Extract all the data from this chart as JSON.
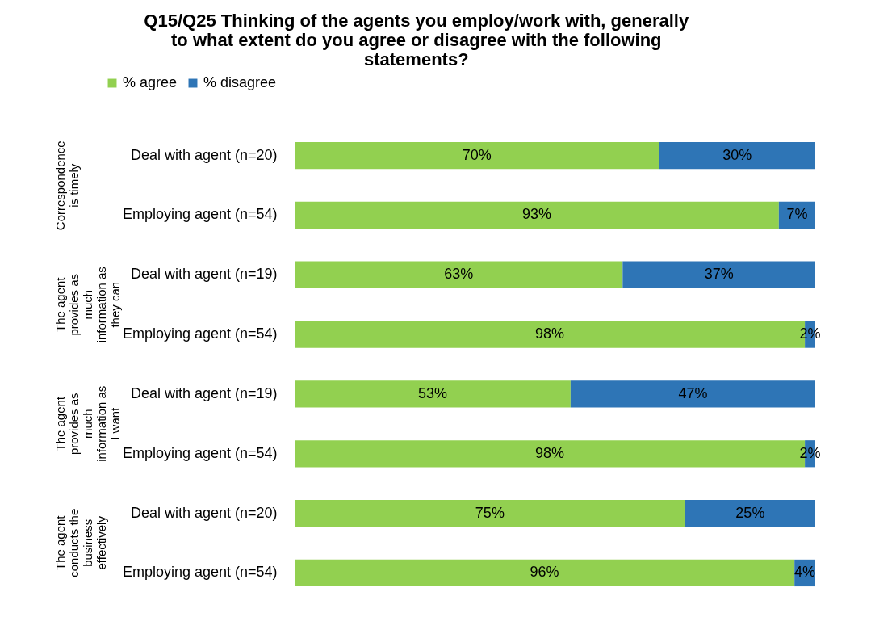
{
  "chart_data": {
    "type": "bar",
    "orientation": "horizontal",
    "stacked": true,
    "title": "Q15/Q25 Thinking of the agents you employ/work with, generally to what extent do you agree or disagree with the following statements?",
    "categories": [
      "Deal with agent (n=20)",
      "Employing agent (n=54)",
      "Deal with agent (n=19)",
      "Employing agent (n=54)",
      "Deal with agent (n=19)",
      "Employing agent (n=54)",
      "Deal with agent (n=20)",
      "Employing agent (n=54)"
    ],
    "series": [
      {
        "name": "% agree",
        "color": "#92d050",
        "values": [
          70,
          93,
          63,
          98,
          53,
          98,
          75,
          96
        ],
        "value_labels": [
          "70%",
          "93%",
          "63%",
          "98%",
          "53%",
          "98%",
          "75%",
          "96%"
        ]
      },
      {
        "name": "% disagree",
        "color": "#2e75b6",
        "values": [
          30,
          7,
          37,
          2,
          47,
          2,
          25,
          4
        ],
        "value_labels": [
          "30%",
          "7%",
          "37%",
          "2%",
          "47%",
          "2%",
          "25%",
          "4%"
        ]
      }
    ],
    "annotations": [
      "Correspondence is timely",
      "The agent provides as much information as they can",
      "The agent provides as much information as I want",
      "The agent conducts the business effectively"
    ],
    "legend": "top",
    "tick_labels": "y"
  }
}
